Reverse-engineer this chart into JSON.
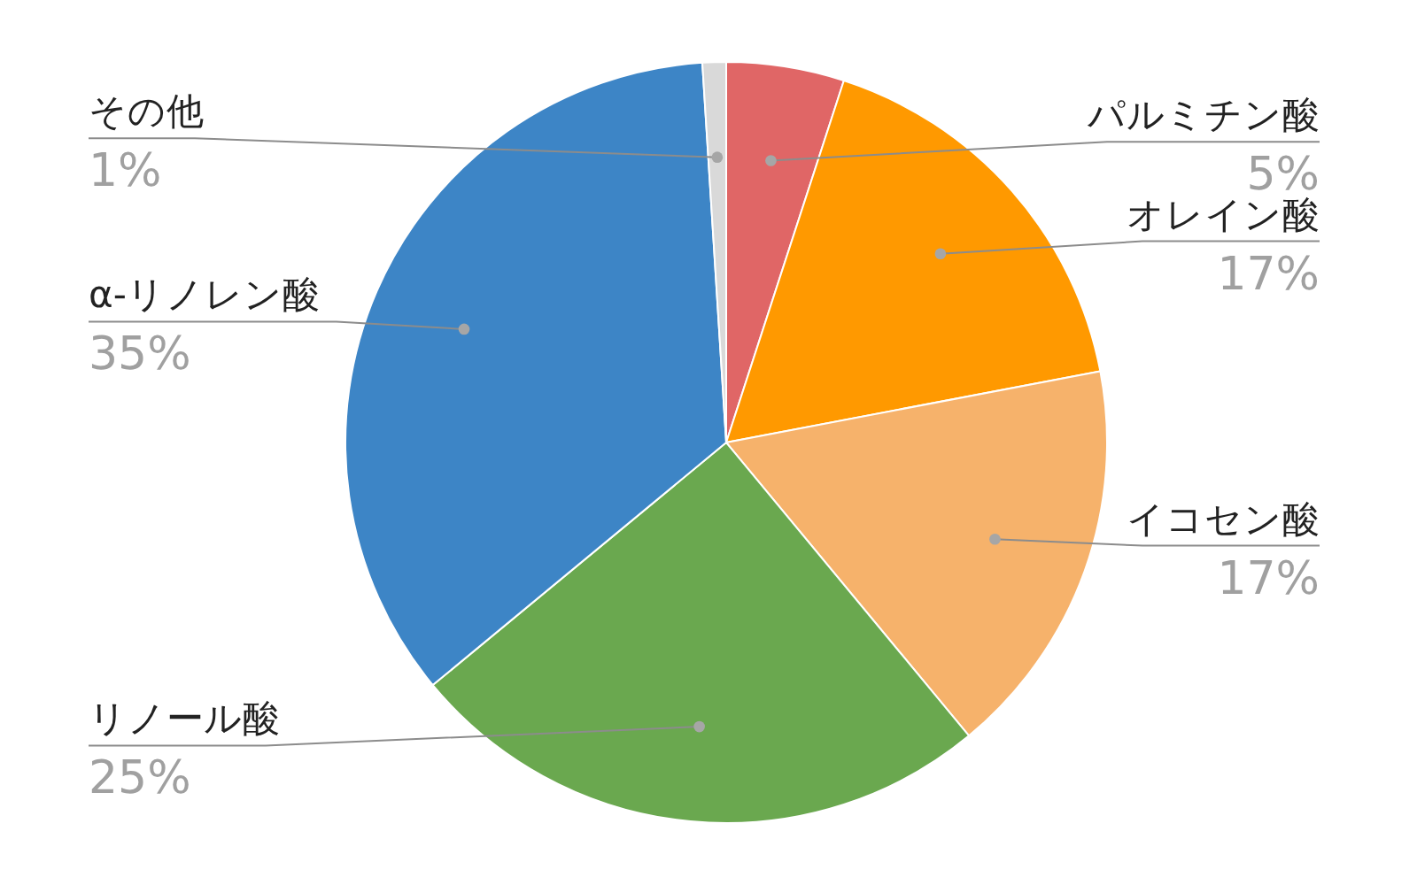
{
  "chart_data": {
    "type": "pie",
    "categories": [
      "パルミチン酸",
      "オレイン酸",
      "イコセン酸",
      "リノール酸",
      "α-リノレン酸",
      "その他"
    ],
    "values": [
      5,
      17,
      17,
      25,
      35,
      1
    ],
    "colors": [
      "#e06666",
      "#ff9900",
      "#f6b26b",
      "#6aa84f",
      "#3d85c6",
      "#d9d9d9"
    ],
    "value_labels": [
      "5%",
      "17%",
      "17%",
      "25%",
      "35%",
      "1%"
    ]
  }
}
